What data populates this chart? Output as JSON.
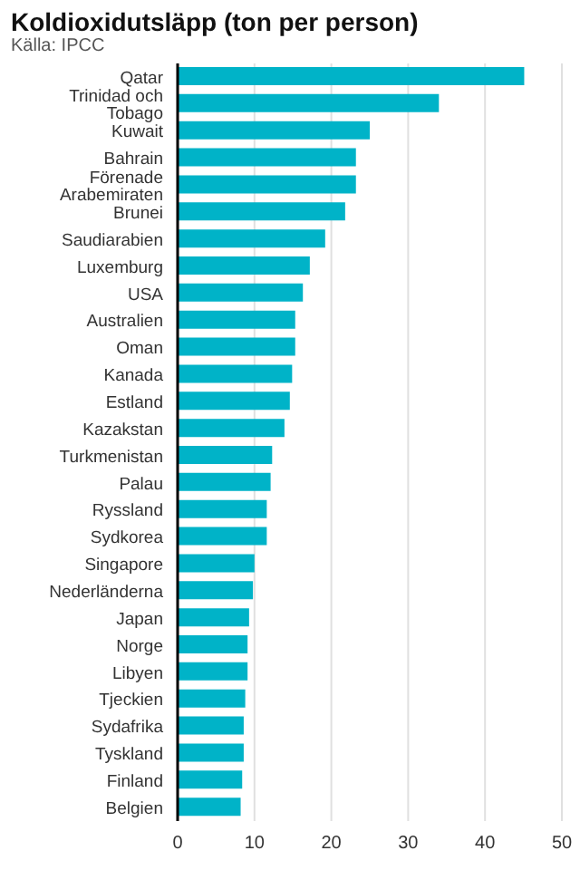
{
  "chart_data": {
    "type": "bar",
    "orientation": "horizontal",
    "title": "Koldioxidutsläpp (ton per person)",
    "annotations": [
      "Källa: IPCC"
    ],
    "categories": [
      "Qatar",
      "Trinidad och Tobago",
      "Kuwait",
      "Bahrain",
      "Förenade Arabemiraten",
      "Brunei",
      "Saudiarabien",
      "Luxemburg",
      "USA",
      "Australien",
      "Oman",
      "Kanada",
      "Estland",
      "Kazakstan",
      "Turkmenistan",
      "Palau",
      "Ryssland",
      "Sydkorea",
      "Singapore",
      "Nederländerna",
      "Japan",
      "Norge",
      "Libyen",
      "Tjeckien",
      "Sydafrika",
      "Tyskland",
      "Finland",
      "Belgien"
    ],
    "values": [
      45.1,
      34.0,
      25.0,
      23.2,
      23.2,
      21.8,
      19.2,
      17.2,
      16.3,
      15.3,
      15.3,
      14.9,
      14.6,
      13.9,
      12.3,
      12.1,
      11.6,
      11.6,
      10.0,
      9.8,
      9.3,
      9.1,
      9.1,
      8.8,
      8.6,
      8.6,
      8.4,
      8.2
    ],
    "color": "#00b3c8",
    "xlim": [
      0,
      50
    ],
    "xticks": [
      0,
      10,
      20,
      30,
      40,
      50
    ],
    "grid": "x",
    "legend": false
  }
}
